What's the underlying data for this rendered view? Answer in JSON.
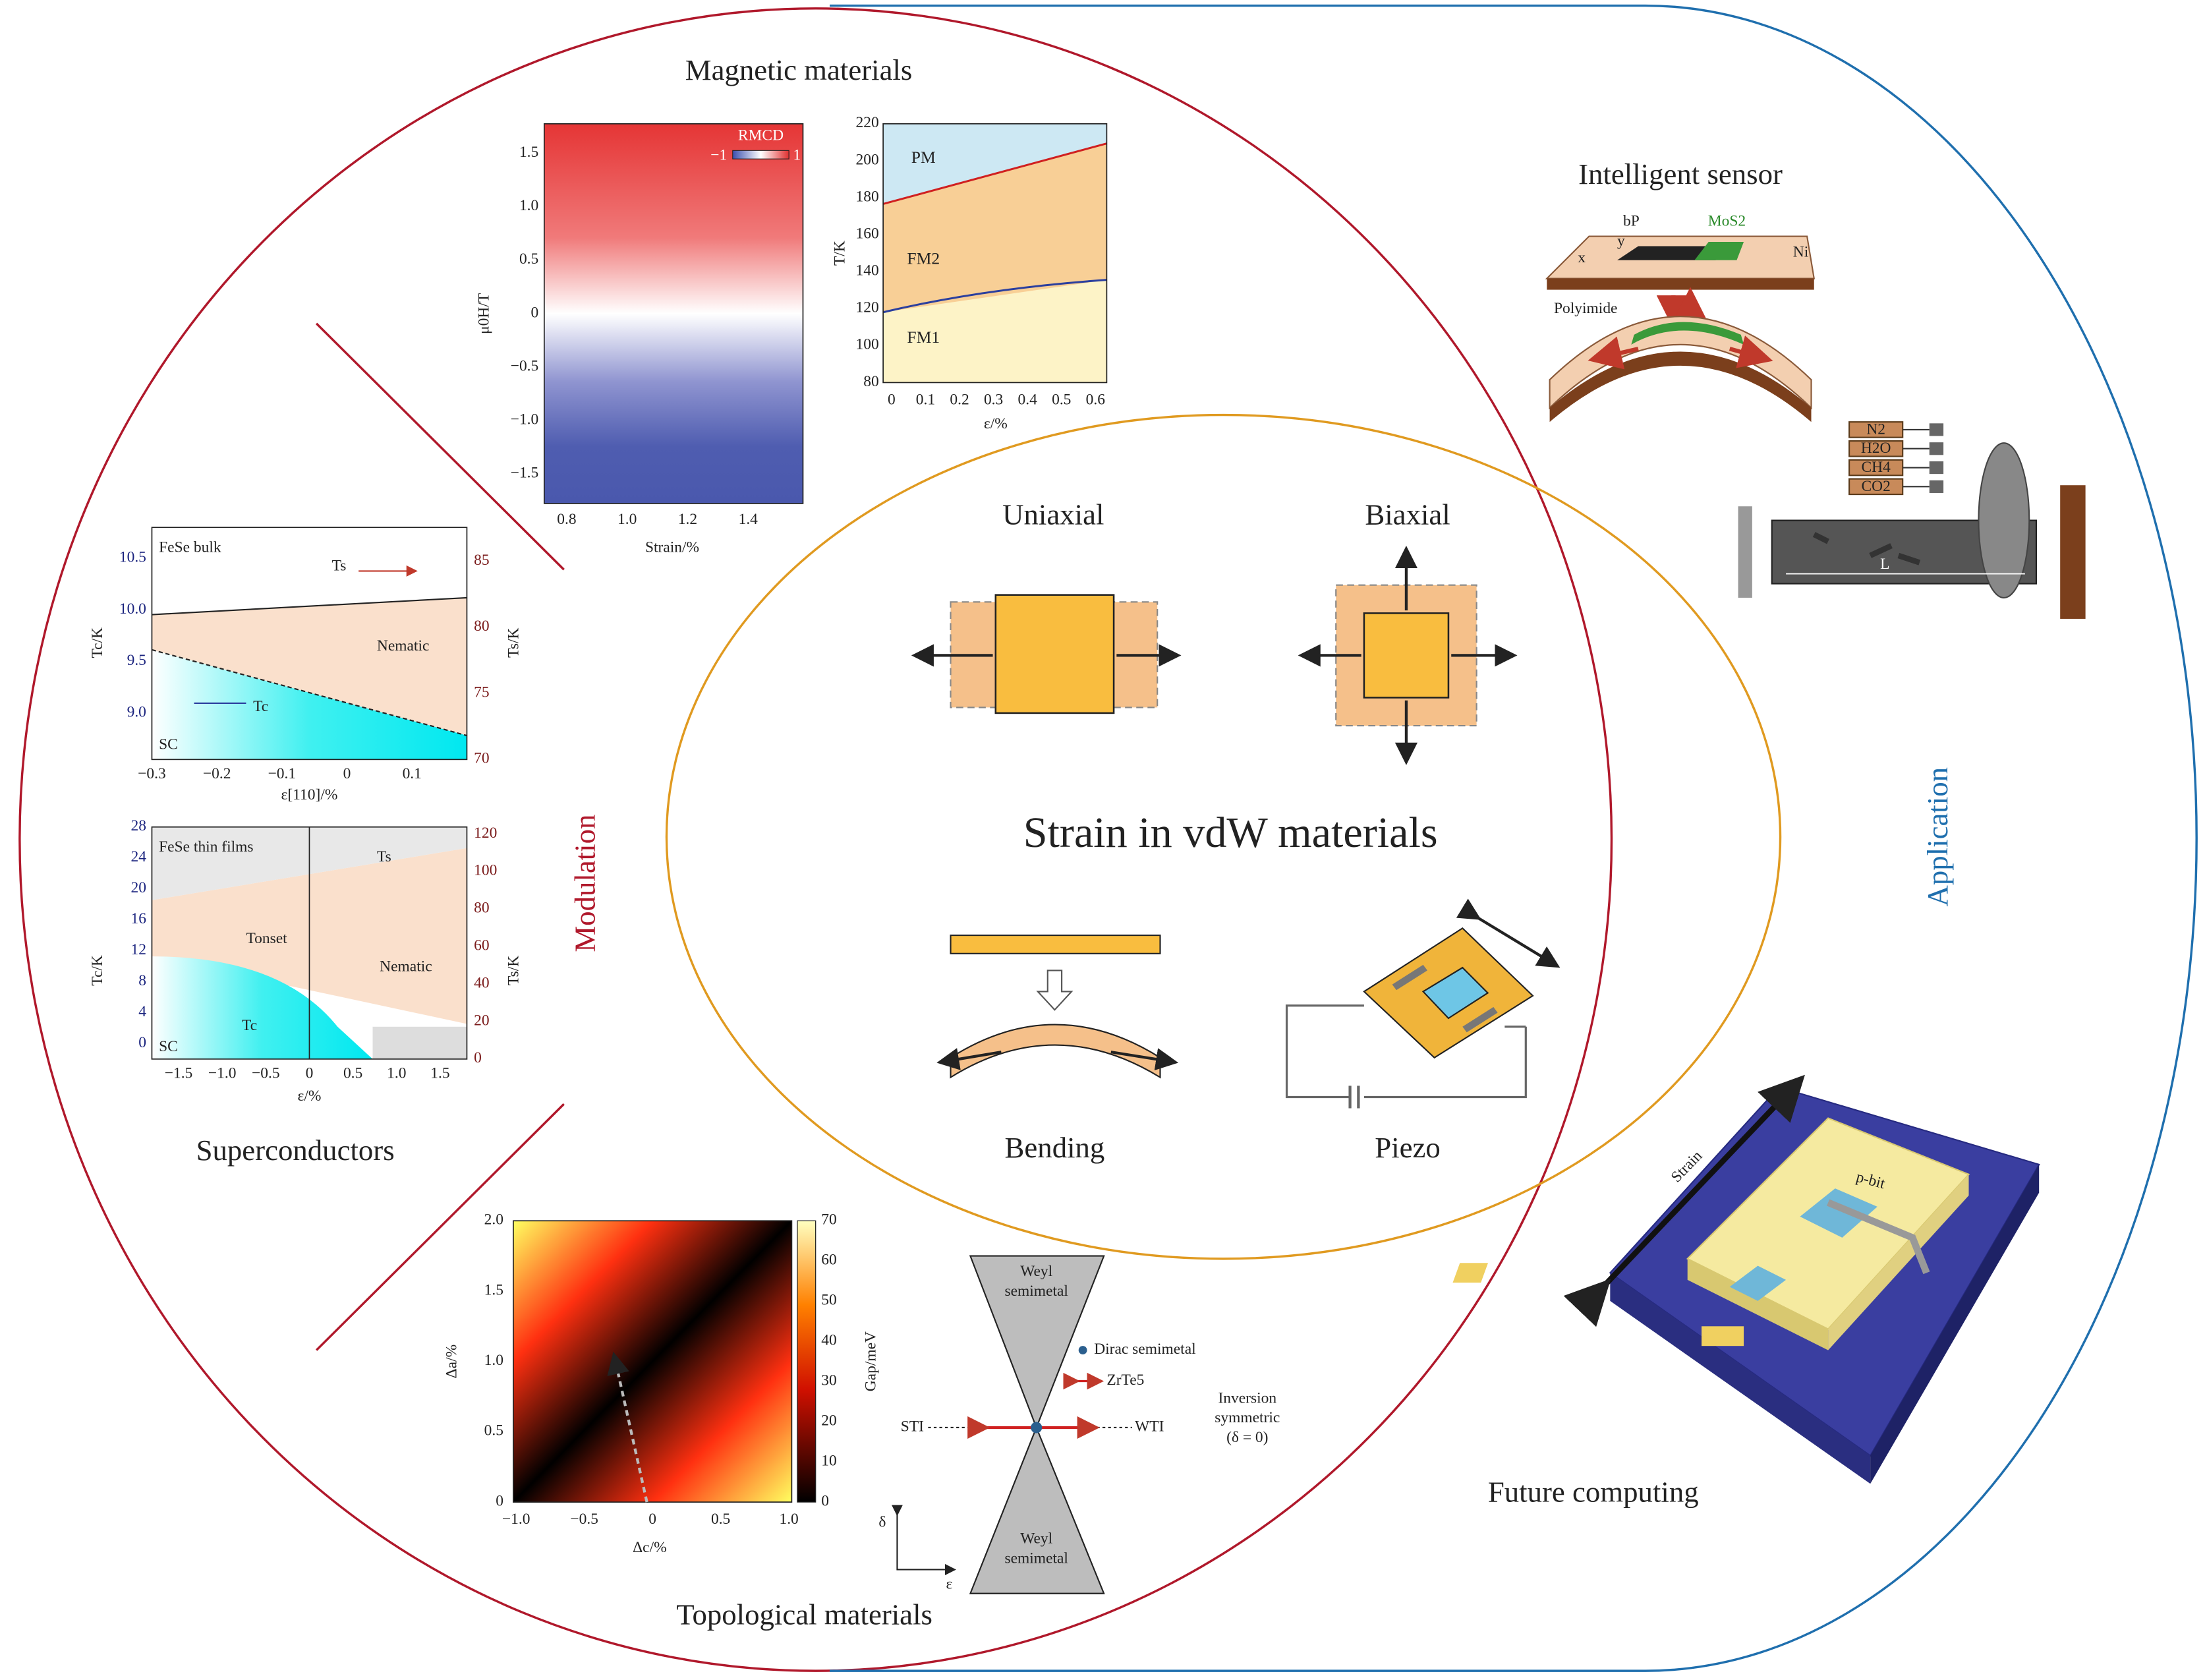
{
  "modulation": "Modulation",
  "application": "Application",
  "center": {
    "title": "Strain in vdW materials",
    "uniaxial": "Uniaxial",
    "biaxial": "Biaxial",
    "bending": "Bending",
    "piezo": "Piezo"
  },
  "magnetic": {
    "title": "Magnetic materials",
    "heatmap": {
      "ylabel": "μ0H/T",
      "xlabel": "Strain/%",
      "yticks": [
        "1.5",
        "1.0",
        "0.5",
        "0",
        "−0.5",
        "−1.0",
        "−1.5"
      ],
      "xticks": [
        "0.8",
        "1.0",
        "1.2",
        "1.4"
      ],
      "colorbar": {
        "label": "RMCD",
        "min": "−1",
        "max": "1"
      }
    },
    "phase": {
      "ylabel": "T/K",
      "xlabel": "ε/%",
      "yticks": [
        "220",
        "200",
        "180",
        "160",
        "140",
        "120",
        "100",
        "80"
      ],
      "xticks": [
        "0",
        "0.1",
        "0.2",
        "0.3",
        "0.4",
        "0.5",
        "0.6"
      ],
      "regions": [
        "PM",
        "FM2",
        "FM1"
      ]
    }
  },
  "superconductors": {
    "title": "Superconductors",
    "bulk": {
      "name": "FeSe bulk",
      "ylabel": "Tc/K",
      "y2label": "Ts/K",
      "xlabel": "ε[110]/%",
      "yticks": [
        "10.5",
        "10.0",
        "9.5",
        "9.0"
      ],
      "y2ticks": [
        "85",
        "80",
        "75",
        "70"
      ],
      "xticks": [
        "−0.3",
        "−0.2",
        "−0.1",
        "0",
        "0.1"
      ],
      "ts": "Ts",
      "nematic": "Nematic",
      "tc": "Tc",
      "sc": "SC"
    },
    "film": {
      "name": "FeSe thin films",
      "ylabel": "Tc/K",
      "y2label": "Ts/K",
      "xlabel": "ε/%",
      "yticks": [
        "28",
        "24",
        "20",
        "16",
        "12",
        "8",
        "4",
        "0"
      ],
      "y2ticks": [
        "120",
        "100",
        "80",
        "60",
        "40",
        "20",
        "0"
      ],
      "xticks": [
        "−1.5",
        "−1.0",
        "−0.5",
        "0",
        "0.5",
        "1.0",
        "1.5"
      ],
      "ts": "Ts",
      "tonset": "Tonset",
      "nematic": "Nematic",
      "tc": "Tc",
      "sc": "SC"
    }
  },
  "topological": {
    "title": "Topological materials",
    "heatmap": {
      "ylabel": "Δa/%",
      "xlabel": "Δc/%",
      "yticks": [
        "2.0",
        "1.5",
        "1.0",
        "0.5",
        "0"
      ],
      "xticks": [
        "−1.0",
        "−0.5",
        "0",
        "0.5",
        "1.0"
      ],
      "colorbar": {
        "label": "Gap/meV",
        "ticks": [
          "70",
          "60",
          "50",
          "40",
          "30",
          "20",
          "10",
          "0"
        ]
      }
    },
    "diagram": {
      "weyl_top": [
        "Weyl",
        "semimetal"
      ],
      "weyl_bottom": [
        "Weyl",
        "semimetal"
      ],
      "dirac": "Dirac semimetal",
      "zrte": "ZrTe5",
      "sti": "STI",
      "wti": "WTI",
      "inversion": [
        "Inversion",
        "symmetric",
        "(δ = 0)"
      ],
      "delta": "δ",
      "epsilon": "ε"
    }
  },
  "sensor": {
    "title": "Intelligent sensor",
    "bp": "bP",
    "mos2": "MoS2",
    "ni": "Ni",
    "x": "x",
    "y": "y",
    "substrate": "Polyimide",
    "gases": [
      "N2",
      "H2O",
      "CH4",
      "CO2"
    ],
    "length": "L"
  },
  "computing": {
    "title": "Future computing",
    "strain": "Strain",
    "device": "p-bit"
  }
}
